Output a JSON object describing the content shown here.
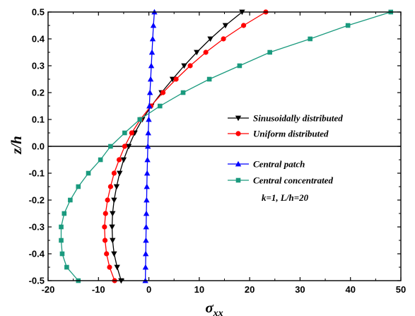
{
  "chart_data": {
    "type": "line",
    "xlabel": "σxx",
    "ylabel": "z/h",
    "xlim": [
      -20,
      50
    ],
    "ylim": [
      -0.5,
      0.5
    ],
    "xticks": [
      "-20",
      "-10",
      "0",
      "10",
      "20",
      "30",
      "40",
      "50"
    ],
    "yticks": [
      "-0.5",
      "-0.4",
      "-0.3",
      "-0.2",
      "-0.1",
      "0.0",
      "0.1",
      "0.2",
      "0.3",
      "0.4",
      "0.5"
    ],
    "grid": false,
    "zero_line": true,
    "annotation": "k=1, L/h=20",
    "series": [
      {
        "name": "Sinusoidally distributed",
        "color": "#000000",
        "marker": "triangle-down",
        "points": [
          [
            -5.5,
            -0.5
          ],
          [
            -6.3,
            -0.45
          ],
          [
            -6.9,
            -0.4
          ],
          [
            -7.2,
            -0.35
          ],
          [
            -7.3,
            -0.3
          ],
          [
            -7.2,
            -0.25
          ],
          [
            -6.9,
            -0.2
          ],
          [
            -6.4,
            -0.15
          ],
          [
            -5.8,
            -0.1
          ],
          [
            -5.0,
            -0.05
          ],
          [
            -4.0,
            0.0
          ],
          [
            -2.8,
            0.05
          ],
          [
            -1.3,
            0.1
          ],
          [
            0.5,
            0.15
          ],
          [
            2.5,
            0.2
          ],
          [
            4.7,
            0.25
          ],
          [
            7.0,
            0.3
          ],
          [
            9.5,
            0.35
          ],
          [
            12.2,
            0.4
          ],
          [
            15.2,
            0.45
          ],
          [
            18.5,
            0.5
          ]
        ]
      },
      {
        "name": "Uniform distributed",
        "color": "#ff0000",
        "marker": "circle",
        "points": [
          [
            -6.8,
            -0.5
          ],
          [
            -7.8,
            -0.45
          ],
          [
            -8.4,
            -0.4
          ],
          [
            -8.7,
            -0.35
          ],
          [
            -8.8,
            -0.3
          ],
          [
            -8.6,
            -0.25
          ],
          [
            -8.2,
            -0.2
          ],
          [
            -7.6,
            -0.15
          ],
          [
            -6.9,
            -0.1
          ],
          [
            -5.9,
            -0.05
          ],
          [
            -4.8,
            0.0
          ],
          [
            -3.4,
            0.05
          ],
          [
            -1.7,
            0.1
          ],
          [
            0.4,
            0.15
          ],
          [
            2.8,
            0.2
          ],
          [
            5.4,
            0.25
          ],
          [
            8.2,
            0.3
          ],
          [
            11.3,
            0.35
          ],
          [
            14.8,
            0.4
          ],
          [
            18.8,
            0.45
          ],
          [
            23.2,
            0.5
          ]
        ]
      },
      {
        "name": "Central patch",
        "color": "#0000ff",
        "marker": "triangle-up",
        "points": [
          [
            -0.7,
            -0.5
          ],
          [
            -0.66,
            -0.45
          ],
          [
            -0.62,
            -0.4
          ],
          [
            -0.58,
            -0.35
          ],
          [
            -0.54,
            -0.3
          ],
          [
            -0.5,
            -0.25
          ],
          [
            -0.45,
            -0.2
          ],
          [
            -0.4,
            -0.15
          ],
          [
            -0.34,
            -0.1
          ],
          [
            -0.28,
            -0.05
          ],
          [
            -0.2,
            0.0
          ],
          [
            -0.12,
            0.05
          ],
          [
            -0.02,
            0.1
          ],
          [
            0.1,
            0.15
          ],
          [
            0.22,
            0.2
          ],
          [
            0.35,
            0.25
          ],
          [
            0.48,
            0.3
          ],
          [
            0.62,
            0.35
          ],
          [
            0.76,
            0.4
          ],
          [
            0.9,
            0.45
          ],
          [
            1.1,
            0.5
          ]
        ]
      },
      {
        "name": "Central concentrated",
        "color": "#1a9a7e",
        "marker": "square",
        "points": [
          [
            -14.0,
            -0.5
          ],
          [
            -16.3,
            -0.45
          ],
          [
            -17.2,
            -0.4
          ],
          [
            -17.4,
            -0.35
          ],
          [
            -17.4,
            -0.3
          ],
          [
            -16.8,
            -0.25
          ],
          [
            -15.6,
            -0.2
          ],
          [
            -14.0,
            -0.15
          ],
          [
            -12.0,
            -0.1
          ],
          [
            -9.6,
            -0.05
          ],
          [
            -7.6,
            0.0
          ],
          [
            -4.8,
            0.05
          ],
          [
            -1.8,
            0.1
          ],
          [
            2.2,
            0.15
          ],
          [
            6.8,
            0.2
          ],
          [
            12.0,
            0.25
          ],
          [
            18.0,
            0.3
          ],
          [
            24.0,
            0.35
          ],
          [
            32.0,
            0.4
          ],
          [
            39.5,
            0.45
          ],
          [
            48.0,
            0.5
          ]
        ]
      }
    ]
  }
}
